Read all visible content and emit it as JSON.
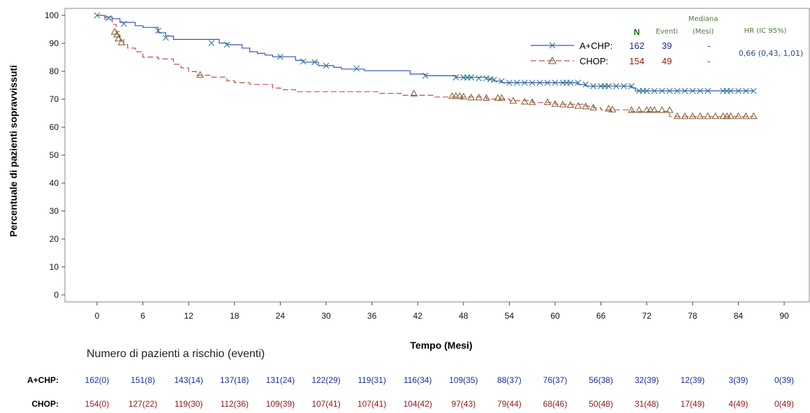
{
  "chart_data": {
    "type": "line",
    "subtype": "kaplan-meier",
    "xlabel": "Tempo (Mesi)",
    "ylabel": "Percentuale di pazienti sopravvissuti",
    "xlim": [
      -3,
      92
    ],
    "ylim": [
      -2,
      102
    ],
    "xticks": [
      0,
      6,
      12,
      18,
      24,
      30,
      36,
      42,
      48,
      54,
      60,
      66,
      72,
      78,
      84,
      90
    ],
    "yticks": [
      0,
      10,
      20,
      30,
      40,
      50,
      60,
      70,
      80,
      90,
      100
    ],
    "grid": false,
    "legend_position": "top-right",
    "legend_headers": {
      "n": "N",
      "eventi": "Eventi",
      "mediana_1": "Mediana",
      "mediana_2": "(Mesi)",
      "hr": "HR (IC 95%)"
    },
    "series": [
      {
        "name": "A+CHP:",
        "color": "#3a4fc0",
        "marker_color": "#2f7f8a",
        "marker": "x",
        "line_style": "solid",
        "n": "162",
        "eventi": "39",
        "mediana": "-",
        "hr": "0,66 (0,43, 1,01)",
        "steps": [
          [
            0,
            100
          ],
          [
            1,
            99.4
          ],
          [
            2,
            98.8
          ],
          [
            3,
            97.5
          ],
          [
            5,
            96.3
          ],
          [
            6,
            95.7
          ],
          [
            8,
            93.8
          ],
          [
            9,
            92.6
          ],
          [
            10,
            91.4
          ],
          [
            16,
            90.1
          ],
          [
            17,
            89.5
          ],
          [
            19,
            88.3
          ],
          [
            20,
            87.0
          ],
          [
            21,
            86.4
          ],
          [
            22,
            85.8
          ],
          [
            23,
            85.2
          ],
          [
            26,
            83.9
          ],
          [
            27,
            83.3
          ],
          [
            29,
            82.0
          ],
          [
            31,
            81.4
          ],
          [
            32,
            80.8
          ],
          [
            35,
            80.2
          ],
          [
            41,
            79.0
          ],
          [
            43,
            78.4
          ],
          [
            47,
            77.8
          ],
          [
            51,
            77.2
          ],
          [
            52,
            76.5
          ],
          [
            53,
            75.9
          ],
          [
            63,
            75.3
          ],
          [
            64,
            74.7
          ],
          [
            70,
            74.1
          ],
          [
            70.5,
            73.0
          ],
          [
            86,
            73.0
          ]
        ],
        "censor": [
          [
            0,
            100
          ],
          [
            1.5,
            99
          ],
          [
            3.5,
            97
          ],
          [
            8,
            94.5
          ],
          [
            9,
            92
          ],
          [
            15,
            90.1
          ],
          [
            17,
            89.5
          ],
          [
            24,
            85.2
          ],
          [
            27,
            83.5
          ],
          [
            28.5,
            83.3
          ],
          [
            30,
            82
          ],
          [
            34,
            81
          ],
          [
            43,
            78.4
          ],
          [
            47,
            77.8
          ],
          [
            48,
            77.8
          ],
          [
            48.5,
            77.8
          ],
          [
            49,
            77.8
          ],
          [
            50,
            77.5
          ],
          [
            51,
            77.5
          ],
          [
            51.5,
            77.2
          ],
          [
            52,
            77
          ],
          [
            53,
            76.5
          ],
          [
            54,
            75.9
          ],
          [
            55,
            75.9
          ],
          [
            56,
            75.9
          ],
          [
            57,
            75.9
          ],
          [
            58,
            75.9
          ],
          [
            59,
            75.9
          ],
          [
            60,
            75.9
          ],
          [
            61,
            75.9
          ],
          [
            61.5,
            75.9
          ],
          [
            62,
            75.9
          ],
          [
            63,
            75.9
          ],
          [
            64,
            75.3
          ],
          [
            65,
            74.7
          ],
          [
            66,
            74.7
          ],
          [
            66.5,
            74.7
          ],
          [
            67,
            74.7
          ],
          [
            68,
            74.7
          ],
          [
            69,
            74.7
          ],
          [
            70,
            74.7
          ],
          [
            71,
            73.0
          ],
          [
            71.5,
            73.0
          ],
          [
            72,
            73.0
          ],
          [
            73,
            73.0
          ],
          [
            74,
            73.0
          ],
          [
            75,
            73.0
          ],
          [
            76,
            73.0
          ],
          [
            77,
            73.0
          ],
          [
            78,
            73.0
          ],
          [
            79,
            73.0
          ],
          [
            80,
            73.0
          ],
          [
            82,
            73.0
          ],
          [
            82.5,
            73.0
          ],
          [
            83,
            73.0
          ],
          [
            84,
            73.0
          ],
          [
            85,
            73.0
          ],
          [
            86,
            73.0
          ]
        ]
      },
      {
        "name": "CHOP:",
        "color": "#c0504d",
        "marker_color": "#7a5a2a",
        "marker": "triangle",
        "line_style": "dashed",
        "n": "154",
        "eventi": "49",
        "mediana": "-",
        "steps": [
          [
            0,
            100
          ],
          [
            1,
            98.7
          ],
          [
            2,
            96.8
          ],
          [
            2.5,
            94.2
          ],
          [
            3,
            91.6
          ],
          [
            3.5,
            89.6
          ],
          [
            4,
            88.3
          ],
          [
            5,
            87.0
          ],
          [
            6,
            85.1
          ],
          [
            8,
            84.4
          ],
          [
            10,
            82.5
          ],
          [
            11,
            81.2
          ],
          [
            12,
            79.9
          ],
          [
            13,
            78.6
          ],
          [
            15,
            77.9
          ],
          [
            17,
            76.6
          ],
          [
            18,
            75.9
          ],
          [
            20,
            75.3
          ],
          [
            23,
            74.0
          ],
          [
            24,
            73.4
          ],
          [
            26,
            72.7
          ],
          [
            37,
            72.1
          ],
          [
            40,
            71.4
          ],
          [
            44,
            70.8
          ],
          [
            51,
            70.1
          ],
          [
            54,
            69.5
          ],
          [
            57,
            68.8
          ],
          [
            60,
            68.2
          ],
          [
            64,
            67.5
          ],
          [
            65,
            66.9
          ],
          [
            66,
            66.2
          ],
          [
            70,
            65.6
          ],
          [
            75,
            63.8
          ],
          [
            86,
            63.8
          ]
        ],
        "censor": [
          [
            2.3,
            94
          ],
          [
            2.6,
            93
          ],
          [
            2.8,
            91.6
          ],
          [
            3.2,
            90.2
          ],
          [
            13.5,
            78.6
          ],
          [
            41.5,
            71.9
          ],
          [
            46.5,
            71.0
          ],
          [
            47,
            71.0
          ],
          [
            47.5,
            71.0
          ],
          [
            48,
            70.8
          ],
          [
            49,
            70.5
          ],
          [
            50,
            70.5
          ],
          [
            51,
            70.3
          ],
          [
            52.5,
            70.3
          ],
          [
            53,
            70.3
          ],
          [
            54.5,
            69.3
          ],
          [
            56,
            69.0
          ],
          [
            57,
            68.8
          ],
          [
            59,
            68.8
          ],
          [
            60,
            68.2
          ],
          [
            61,
            68.0
          ],
          [
            62,
            67.8
          ],
          [
            63,
            67.5
          ],
          [
            64,
            67.3
          ],
          [
            65,
            66.9
          ],
          [
            67,
            66.5
          ],
          [
            67.5,
            66.2
          ],
          [
            70,
            66.0
          ],
          [
            71,
            66.0
          ],
          [
            72,
            66.0
          ],
          [
            72.5,
            66.0
          ],
          [
            73,
            66.0
          ],
          [
            74,
            66.0
          ],
          [
            75,
            66.0
          ],
          [
            76,
            63.8
          ],
          [
            77,
            63.8
          ],
          [
            78,
            63.8
          ],
          [
            79,
            63.8
          ],
          [
            80,
            63.8
          ],
          [
            81,
            63.8
          ],
          [
            82,
            63.8
          ],
          [
            82.5,
            63.8
          ],
          [
            83,
            63.8
          ],
          [
            84,
            63.8
          ],
          [
            85,
            63.8
          ],
          [
            86,
            63.8
          ]
        ]
      }
    ]
  },
  "risk_table": {
    "title": "Numero di pazienti a rischio (eventi)",
    "rows": [
      {
        "label": "A+CHP:",
        "color": "#1a2f9a",
        "values": [
          "162(0)",
          "151(8)",
          "143(14)",
          "137(18)",
          "131(24)",
          "122(29)",
          "119(31)",
          "116(34)",
          "109(35)",
          "88(37)",
          "76(37)",
          "56(38)",
          "32(39)",
          "12(39)",
          "3(39)",
          "0(39)"
        ]
      },
      {
        "label": "CHOP:",
        "color": "#8b1a1a",
        "values": [
          "154(0)",
          "127(22)",
          "119(30)",
          "112(36)",
          "109(39)",
          "107(41)",
          "107(41)",
          "104(42)",
          "97(43)",
          "79(44)",
          "68(46)",
          "50(48)",
          "31(48)",
          "17(49)",
          "4(49)",
          "0(49)"
        ]
      }
    ]
  }
}
